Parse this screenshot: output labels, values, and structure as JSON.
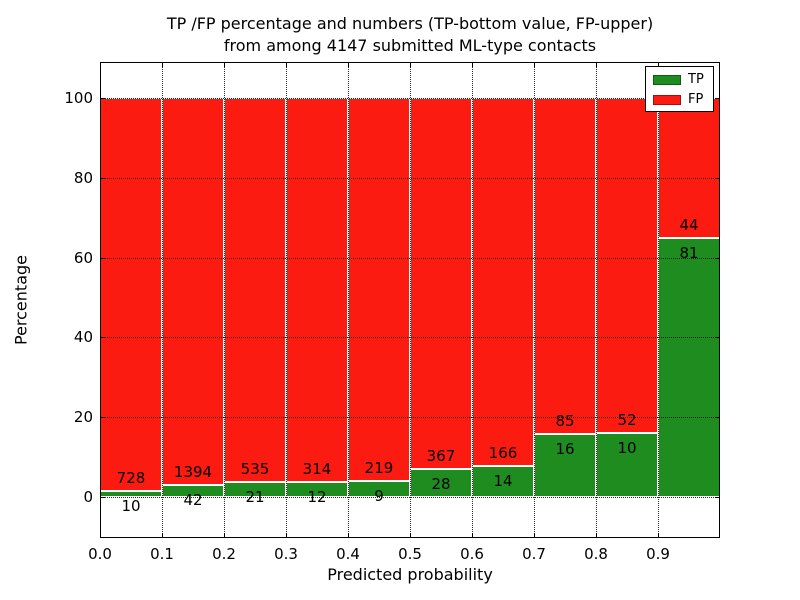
{
  "figure": {
    "title_line1": "TP /FP percentage and numbers (TP-bottom value, FP-upper)",
    "title_line2": "from among 4147 submitted ML-type contacts"
  },
  "chart_data": {
    "type": "bar",
    "stacked": true,
    "normalized_to": 100,
    "title": "TP /FP percentage and numbers (TP-bottom value, FP-upper)\nfrom among 4147 submitted ML-type contacts",
    "xlabel": "Predicted probability",
    "ylabel": "Percentage",
    "total_contacts": 4147,
    "xlim": [
      0.0,
      1.0
    ],
    "ylim": [
      -10.3,
      109.0
    ],
    "x_tick_labels": [
      "0.0",
      "0.1",
      "0.2",
      "0.3",
      "0.4",
      "0.5",
      "0.6",
      "0.7",
      "0.8",
      "0.9"
    ],
    "y_ticks": [
      0,
      20,
      40,
      60,
      80,
      100
    ],
    "grid": "dotted",
    "legend_position": "upper right",
    "legend": [
      {
        "label": "TP",
        "color": "#1e8c1e"
      },
      {
        "label": "FP",
        "color": "#fb1b10"
      }
    ],
    "colors": {
      "tp": "#1e8c1e",
      "fp": "#fb1b10",
      "bar_edge": "#ffffff",
      "text": "#000000"
    },
    "bins": [
      {
        "range": [
          0.0,
          0.1
        ],
        "tp": 10,
        "fp": 728
      },
      {
        "range": [
          0.1,
          0.2
        ],
        "tp": 42,
        "fp": 1394
      },
      {
        "range": [
          0.2,
          0.3
        ],
        "tp": 21,
        "fp": 535
      },
      {
        "range": [
          0.3,
          0.4
        ],
        "tp": 12,
        "fp": 314
      },
      {
        "range": [
          0.4,
          0.5
        ],
        "tp": 9,
        "fp": 219
      },
      {
        "range": [
          0.5,
          0.6
        ],
        "tp": 28,
        "fp": 367
      },
      {
        "range": [
          0.6,
          0.7
        ],
        "tp": 14,
        "fp": 166
      },
      {
        "range": [
          0.7,
          0.8
        ],
        "tp": 16,
        "fp": 85
      },
      {
        "range": [
          0.8,
          0.9
        ],
        "tp": 10,
        "fp": 52
      },
      {
        "range": [
          0.9,
          1.0
        ],
        "tp": 81,
        "fp": 44
      }
    ]
  }
}
